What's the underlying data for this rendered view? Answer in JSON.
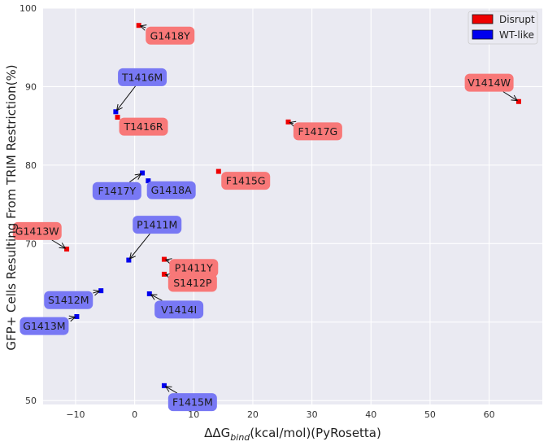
{
  "chart_data": {
    "type": "scatter",
    "xlabel_main": "ΔΔG",
    "xlabel_sub": "bind",
    "xlabel_rest": "(kcal/mol)(PyRosetta)",
    "ylabel": "GFP+ Cells Resulting From TRIM Restriction(%)",
    "xlim": [
      -15.5,
      69
    ],
    "ylim": [
      49.5,
      100
    ],
    "xticks": [
      -10,
      0,
      10,
      20,
      30,
      40,
      50,
      60
    ],
    "xtick_labels": [
      "−10",
      "0",
      "10",
      "20",
      "30",
      "40",
      "50",
      "60"
    ],
    "yticks": [
      50,
      60,
      70,
      80,
      90,
      100
    ],
    "ytick_labels": [
      "50",
      "60",
      "70",
      "80",
      "90",
      "100"
    ],
    "grid": true,
    "legend_position": "top-right",
    "legend": [
      {
        "label": "Disrupt",
        "color": "#ee0000"
      },
      {
        "label": "WT-like",
        "color": "#0000ee"
      }
    ],
    "colors": {
      "disrupt_marker": "#ee0000",
      "wtlike_marker": "#0000ee",
      "disrupt_box": "#f87878",
      "wtlike_box": "#7878f4",
      "background": "#eaeaf2"
    },
    "points": [
      {
        "name": "G1418Y",
        "x": 0.7,
        "y": 97.8,
        "group": "Disrupt",
        "lx": 6.0,
        "ly": 96.5
      },
      {
        "name": "T1416M",
        "x": -3.2,
        "y": 86.8,
        "group": "WT-like",
        "lx": 1.3,
        "ly": 91.2
      },
      {
        "name": "T1416R",
        "x": -2.9,
        "y": 86.1,
        "group": "Disrupt",
        "lx": 1.5,
        "ly": 84.9
      },
      {
        "name": "V1414W",
        "x": 65.0,
        "y": 88.1,
        "group": "Disrupt",
        "lx": 60.0,
        "ly": 90.5
      },
      {
        "name": "F1417G",
        "x": 26.0,
        "y": 85.5,
        "group": "Disrupt",
        "lx": 31.0,
        "ly": 84.3
      },
      {
        "name": "F1415G",
        "x": 14.2,
        "y": 79.2,
        "group": "Disrupt",
        "lx": 18.8,
        "ly": 78.0
      },
      {
        "name": "G1418A",
        "x": 2.3,
        "y": 78.0,
        "group": "WT-like",
        "lx": 6.2,
        "ly": 76.8
      },
      {
        "name": "F1417Y",
        "x": 1.3,
        "y": 79.0,
        "group": "WT-like",
        "lx": -3.0,
        "ly": 76.7
      },
      {
        "name": "P1411M",
        "x": -1.0,
        "y": 67.9,
        "group": "WT-like",
        "lx": 3.8,
        "ly": 72.4
      },
      {
        "name": "G1413W",
        "x": -11.5,
        "y": 69.3,
        "group": "Disrupt",
        "lx": -16.5,
        "ly": 71.6
      },
      {
        "name": "P1411Y",
        "x": 5.0,
        "y": 68.0,
        "group": "Disrupt",
        "lx": 10.0,
        "ly": 66.9
      },
      {
        "name": "S1412P",
        "x": 5.0,
        "y": 66.1,
        "group": "Disrupt",
        "lx": 9.8,
        "ly": 65.0
      },
      {
        "name": "S1412M",
        "x": -5.7,
        "y": 64.0,
        "group": "WT-like",
        "lx": -11.2,
        "ly": 62.8
      },
      {
        "name": "V1414I",
        "x": 2.5,
        "y": 63.6,
        "group": "WT-like",
        "lx": 7.5,
        "ly": 61.6
      },
      {
        "name": "G1413M",
        "x": -9.8,
        "y": 60.7,
        "group": "WT-like",
        "lx": -15.3,
        "ly": 59.5
      },
      {
        "name": "F1415M",
        "x": 5.0,
        "y": 51.9,
        "group": "WT-like",
        "lx": 9.8,
        "ly": 49.8
      }
    ]
  }
}
